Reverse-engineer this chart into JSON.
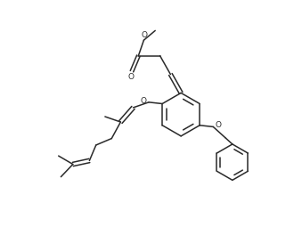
{
  "bg_color": "#ffffff",
  "line_color": "#2a2a2a",
  "line_width": 1.1,
  "figsize": [
    3.39,
    2.64
  ],
  "dpi": 100,
  "xlim": [
    0,
    10
  ],
  "ylim": [
    0,
    7.8
  ]
}
